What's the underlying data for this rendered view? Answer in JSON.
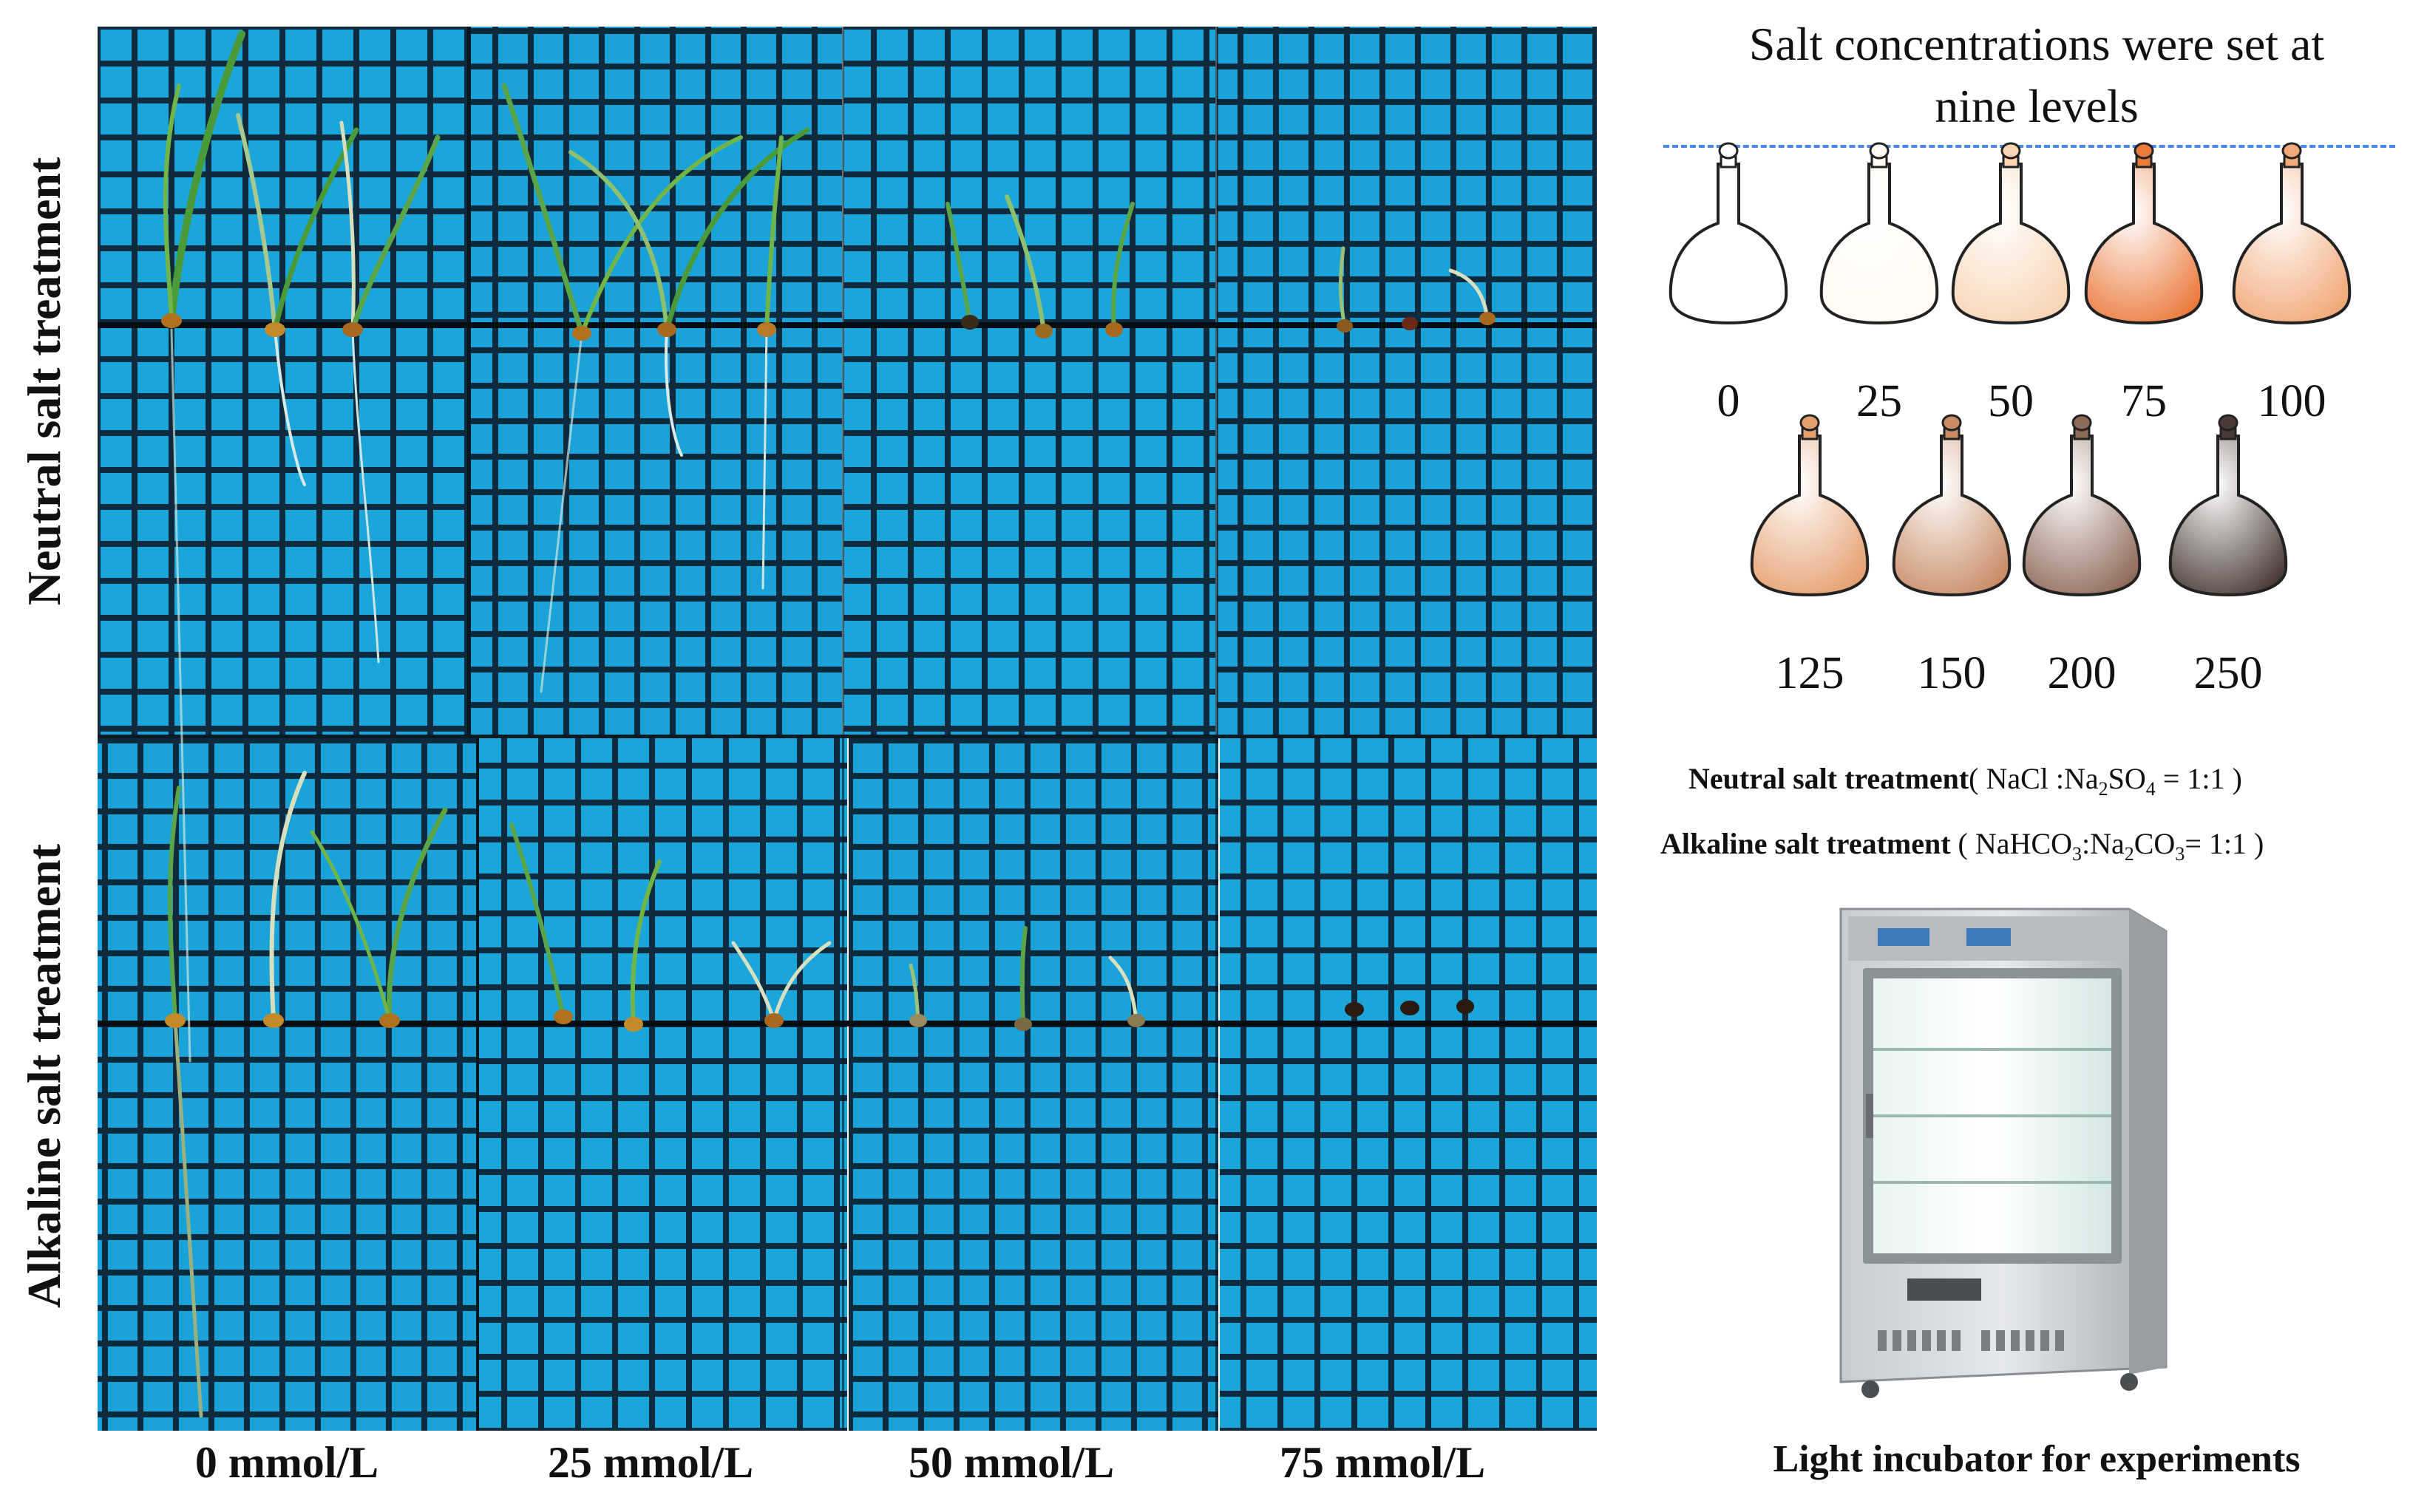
{
  "row_labels": [
    "Neutral salt treatment",
    "Alkaline salt treatment"
  ],
  "column_labels": [
    "0 mmol/L",
    "25 mmol/L",
    "50  mmol/L",
    "75 mmol/L"
  ],
  "panel": {
    "title_line1": "Salt concentrations were set at",
    "title_line2": "nine levels",
    "levels_row1": [
      "0",
      "25",
      "50",
      "75",
      "100"
    ],
    "levels_row2": [
      "125",
      "150",
      "200",
      "250"
    ]
  },
  "treatments": {
    "neutral_name": "Neutral salt treatment",
    "neutral_formula_open": "( NaCl :Na",
    "neutral_sub1": "2",
    "neutral_mid": "SO",
    "neutral_sub2": "4",
    "neutral_close": " = 1:1 )",
    "alkaline_name": "Alkaline salt treatment",
    "alkaline_formula_open": " ( NaHCO",
    "alkaline_sub1": "3",
    "alkaline_mid": ":Na",
    "alkaline_sub2": "2",
    "alkaline_mid2": "CO",
    "alkaline_sub3": "3",
    "alkaline_close": "= 1:1 )"
  },
  "incubator_caption": "Light incubator for experiments",
  "colors": {
    "grid_blue": "#18a8dc",
    "grid_line": "#0b2233",
    "seedling_green": "#4a9a3a",
    "dash_line": "#4a86e8",
    "flask_tints": [
      "#ffffff",
      "#fffaf2",
      "#f8d4b4",
      "#ec7a3c",
      "#f2a878",
      "#e6a070",
      "#c98c66",
      "#8f6a5a",
      "#4a3a36"
    ]
  }
}
